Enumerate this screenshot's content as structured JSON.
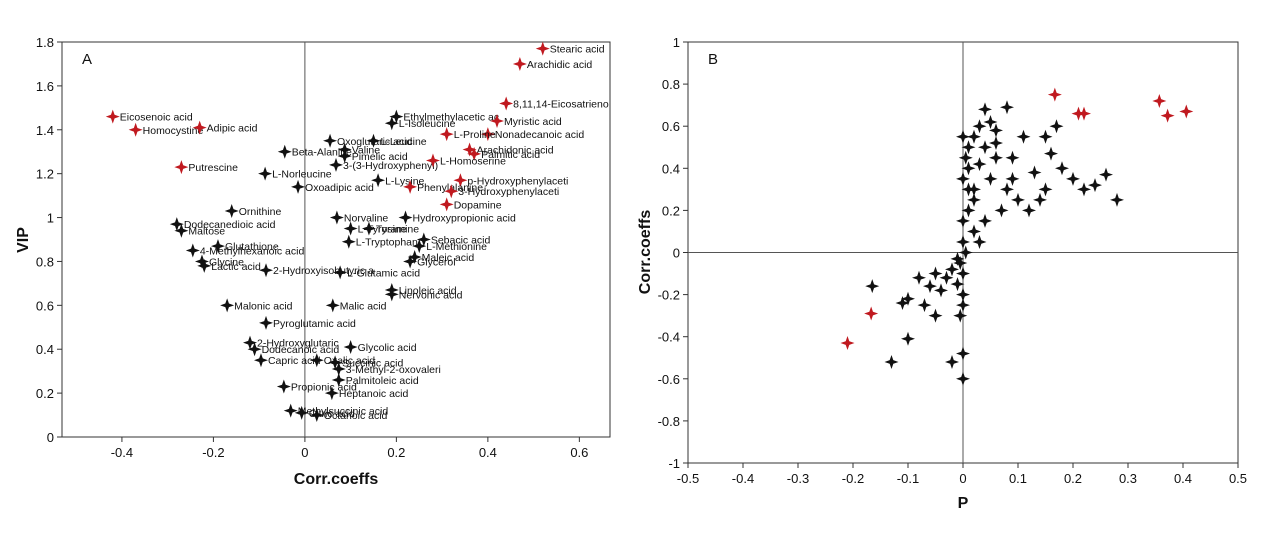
{
  "chart_data": [
    {
      "type": "scatter",
      "title": "A",
      "x_label": "Corr.coeffs",
      "y_label": "VIP",
      "xlim": [
        -0.531,
        0.667
      ],
      "ylim": [
        0,
        1.8
      ],
      "xticks": [
        -0.4,
        -0.2,
        0,
        0.2,
        0.4,
        0.6
      ],
      "yticks": [
        0,
        0.2,
        0.4,
        0.6,
        0.8,
        1,
        1.2,
        1.4,
        1.6,
        1.8
      ],
      "zeroline": true,
      "series": [
        {
          "color": "#c0191f",
          "x": [
            0.52,
            0.47,
            0.44,
            -0.42,
            -0.37,
            -0.23,
            0.42,
            0.4,
            0.31,
            0.36,
            0.37,
            0.28,
            -0.27,
            0.34,
            0.23,
            0.32,
            0.31
          ],
          "values": [
            1.77,
            1.7,
            1.52,
            1.46,
            1.4,
            1.41,
            1.44,
            1.38,
            1.38,
            1.31,
            1.29,
            1.26,
            1.23,
            1.17,
            1.14,
            1.12,
            1.06
          ],
          "labels": [
            "Stearic acid",
            "Arachidic acid",
            "8,11,14-Eicosatrieno",
            "Eicosenoic acid",
            "Homocystine",
            "Adipic acid",
            "Myristic acid",
            "Nonadecanoic acid",
            "L-Proline",
            "Arachidonic acid",
            "Palmitic acid",
            "L-Homoserine",
            "Putrescine",
            "p-Hydroxyphenylaceti",
            "Phenylalanine",
            "3-Hydroxyphenylaceti",
            "Dopamine"
          ]
        },
        {
          "color": "#111111",
          "x": [
            0.2,
            0.19,
            0.15,
            0.055,
            -0.044,
            0.087,
            0.087,
            0.068,
            -0.087,
            -0.015,
            0.16,
            -0.16,
            -0.28,
            -0.27,
            0.07,
            0.22,
            -0.19,
            -0.245,
            -0.225,
            -0.22,
            -0.085,
            0.1,
            0.14,
            0.25,
            0.26,
            0.096,
            0.24,
            0.23,
            0.077,
            0.19,
            0.19,
            -0.17,
            0.061,
            -0.085,
            -0.12,
            0.1,
            -0.11,
            -0.096,
            0.026,
            0.066,
            0.074,
            0.074,
            0.059,
            -0.046,
            -0.031,
            0.026,
            -0.007
          ],
          "values": [
            1.46,
            1.43,
            1.35,
            1.35,
            1.3,
            1.31,
            1.28,
            1.24,
            1.2,
            1.14,
            1.17,
            1.03,
            0.97,
            0.94,
            1.0,
            1.0,
            0.87,
            0.85,
            0.8,
            0.78,
            0.76,
            0.95,
            0.95,
            0.87,
            0.9,
            0.89,
            0.82,
            0.8,
            0.75,
            0.67,
            0.65,
            0.6,
            0.6,
            0.52,
            0.43,
            0.41,
            0.4,
            0.35,
            0.35,
            0.34,
            0.31,
            0.26,
            0.2,
            0.23,
            0.12,
            0.1,
            0.11
          ],
          "labels": [
            "Ethylmethylacetic ac",
            "L-Isoleucine",
            "L-Leucine",
            "Oxoglutaric acid",
            "Beta-Alanine",
            "Valine",
            "Pimelic acid",
            "3-(3-Hydroxyphenyl)",
            "L-Norleucine",
            "Oxoadipic acid",
            "L-Lysine",
            "Ornithine",
            "Dodecanedioic acid",
            "Maltose",
            "Norvaline",
            "Hydroxypropionic acid",
            "Glutathione",
            "4-Methylhexanoic acid",
            "Glycine",
            "Lactic acid",
            "2-Hydroxyisobutyric a",
            "L-Tyrosine",
            "Tyramine",
            "L-Methionine",
            "Sebacic acid",
            "L-Tryptophan",
            "Maleic acid",
            "Glycerol",
            "L-Glutamic acid",
            "Linoleic acid",
            "Nervonic acid",
            "Malonic acid",
            "Malic acid",
            "Pyroglutamic acid",
            "2-Hydroxyglutaric",
            "Glycolic acid",
            "Dodecanoic acid",
            "Capric acid",
            "Oxalic acid",
            "Succinic acid",
            "3-Methyl-2-oxovaleri",
            "Palmitoleic acid",
            "Heptanoic acid",
            "Propionic acid",
            "Methylsuccinic acid",
            "Octanoic acid",
            "Citric acid"
          ]
        }
      ]
    },
    {
      "type": "scatter",
      "title": "B",
      "x_label": "P",
      "y_label": "Corr.coeffs",
      "xlim": [
        -0.5,
        0.5
      ],
      "ylim": [
        -1,
        1
      ],
      "xticks": [
        -0.5,
        -0.4,
        -0.3,
        -0.2,
        -0.1,
        0,
        0.1,
        0.2,
        0.3,
        0.4,
        0.5
      ],
      "yticks": [
        -1,
        -0.8,
        -0.6,
        -0.4,
        -0.2,
        0,
        0.2,
        0.4,
        0.6,
        0.8,
        1
      ],
      "zeroline": true,
      "series": [
        {
          "color": "#c0191f",
          "x": [
            0.167,
            0.21,
            0.22,
            0.357,
            0.372,
            0.406,
            -0.167,
            -0.21
          ],
          "values": [
            0.75,
            0.66,
            0.66,
            0.72,
            0.65,
            0.67,
            -0.29,
            -0.43
          ]
        },
        {
          "color": "#111111",
          "x": [
            0.04,
            0.08,
            0.05,
            0.06,
            0.03,
            0.02,
            0.01,
            0.0,
            0.005,
            0.01,
            0.0,
            0.02,
            0.03,
            0.04,
            0.06,
            0.05,
            0.08,
            0.09,
            0.1,
            0.12,
            0.14,
            0.13,
            0.15,
            0.17,
            0.18,
            0.2,
            0.22,
            0.24,
            0.26,
            0.28,
            0.15,
            0.11,
            0.07,
            0.04,
            0.02,
            0.01,
            0.0,
            0.0,
            0.005,
            -0.005,
            0.0,
            -0.01,
            0.0,
            -0.005,
            0.0,
            -0.02,
            -0.03,
            -0.05,
            -0.06,
            -0.08,
            -0.1,
            -0.11,
            -0.07,
            -0.04,
            -0.05,
            -0.1,
            -0.13,
            -0.165,
            -0.02,
            0.0,
            0.0,
            0.02,
            0.03,
            0.01,
            -0.01,
            0.06,
            0.09,
            0.16
          ],
          "values": [
            0.68,
            0.69,
            0.62,
            0.58,
            0.6,
            0.55,
            0.5,
            0.55,
            0.45,
            0.4,
            0.35,
            0.3,
            0.42,
            0.5,
            0.45,
            0.35,
            0.3,
            0.45,
            0.25,
            0.2,
            0.25,
            0.38,
            0.55,
            0.6,
            0.4,
            0.35,
            0.3,
            0.32,
            0.37,
            0.25,
            0.3,
            0.55,
            0.2,
            0.15,
            0.1,
            0.2,
            0.15,
            0.05,
            0.0,
            -0.05,
            -0.1,
            -0.15,
            -0.2,
            -0.3,
            -0.25,
            -0.08,
            -0.12,
            -0.1,
            -0.16,
            -0.12,
            -0.22,
            -0.24,
            -0.25,
            -0.18,
            -0.3,
            -0.41,
            -0.52,
            -0.16,
            -0.52,
            -0.48,
            -0.6,
            0.25,
            0.05,
            0.3,
            -0.03,
            0.52,
            0.35,
            0.47
          ]
        }
      ]
    }
  ]
}
